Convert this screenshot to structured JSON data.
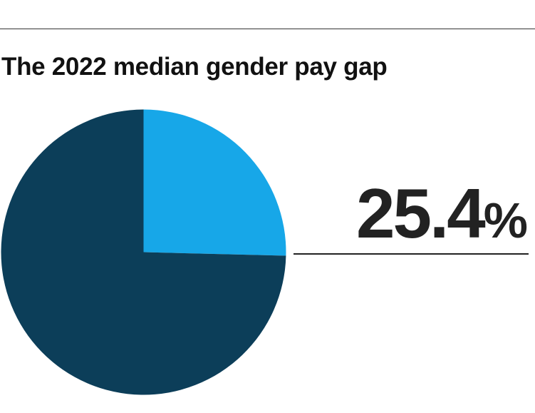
{
  "chart_data": {
    "type": "pie",
    "title": "The 2022 median gender pay gap",
    "slices": [
      {
        "label": "",
        "value": 25.4,
        "color": "#17a7e8"
      },
      {
        "label": "",
        "value": 74.6,
        "color": "#0c3e59"
      }
    ],
    "highlight": {
      "number": "25.4",
      "unit": "%"
    }
  }
}
